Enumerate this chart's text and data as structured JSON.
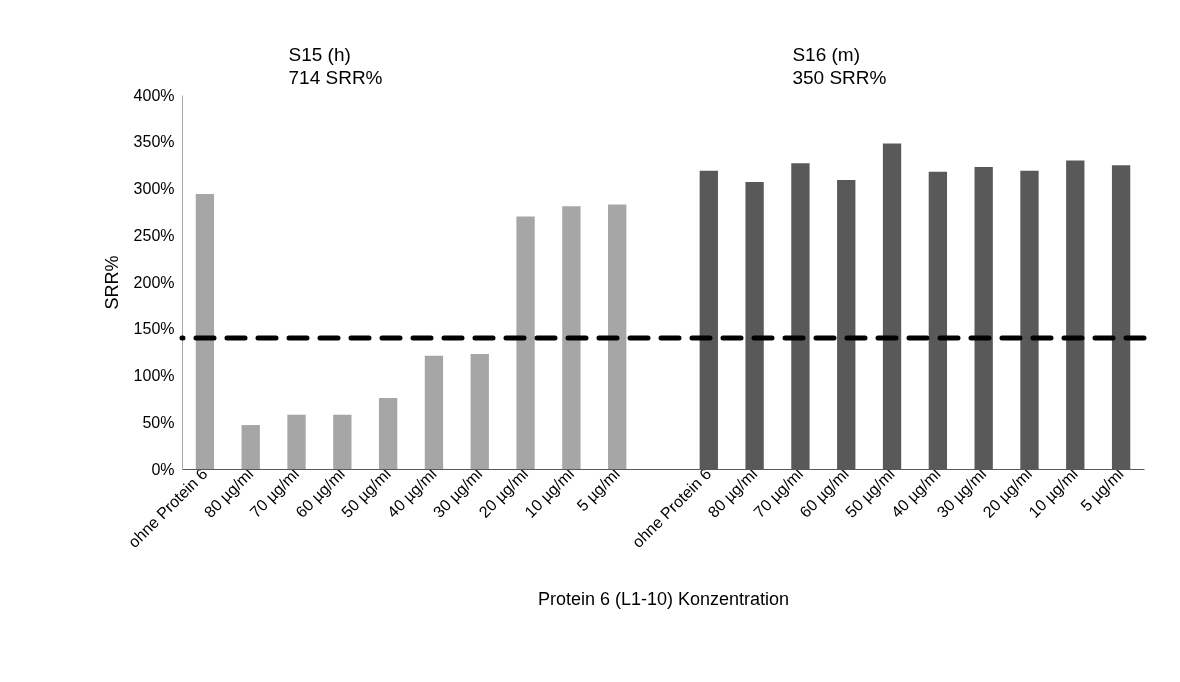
{
  "chart_data": {
    "type": "bar",
    "xlabel": "Protein 6 (L1-10) Konzentration",
    "ylabel": "SRR%",
    "categories": [
      "ohne Protein 6",
      "80 µg/ml",
      "70 µg/ml",
      "60 µg/ml",
      "50 µg/ml",
      "40 µg/ml",
      "30 µg/ml",
      "20 µg/ml",
      "10 µg/ml",
      "5 µg/ml",
      null,
      "ohne Protein 6",
      "80 µg/ml",
      "70 µg/ml",
      "60 µg/ml",
      "50 µg/ml",
      "40 µg/ml",
      "30 µg/ml",
      "20 µg/ml",
      "10 µg/ml",
      "5 µg/ml"
    ],
    "series": [
      {
        "color": "#a6a6a6",
        "values": [
          294,
          47,
          58,
          58,
          76,
          121,
          123,
          270,
          281,
          283,
          null,
          null,
          null,
          null,
          null,
          null,
          null,
          null,
          null,
          null,
          null
        ]
      },
      {
        "color": "#595959",
        "values": [
          null,
          null,
          null,
          null,
          null,
          null,
          null,
          null,
          null,
          null,
          null,
          319,
          307,
          327,
          309,
          348,
          318,
          323,
          319,
          330,
          325
        ]
      }
    ],
    "ylim": [
      0,
      400
    ],
    "yticks": [
      {
        "value": 0,
        "label": "0%"
      },
      {
        "value": 50,
        "label": "50%"
      },
      {
        "value": 100,
        "label": "100%"
      },
      {
        "value": 150,
        "label": "150%"
      },
      {
        "value": 200,
        "label": "200%"
      },
      {
        "value": 250,
        "label": "250%"
      },
      {
        "value": 300,
        "label": "300%"
      },
      {
        "value": 350,
        "label": "350%"
      },
      {
        "value": 400,
        "label": "400%"
      }
    ],
    "ref_lines": [
      {
        "axis": "y",
        "value": 140,
        "color": "#000000",
        "line_style": "dashed"
      }
    ],
    "annotations": [
      "S15 (h)",
      "714 SRR%",
      "S16 (m)",
      "350 SRR%"
    ],
    "grid": false,
    "legend": false
  }
}
